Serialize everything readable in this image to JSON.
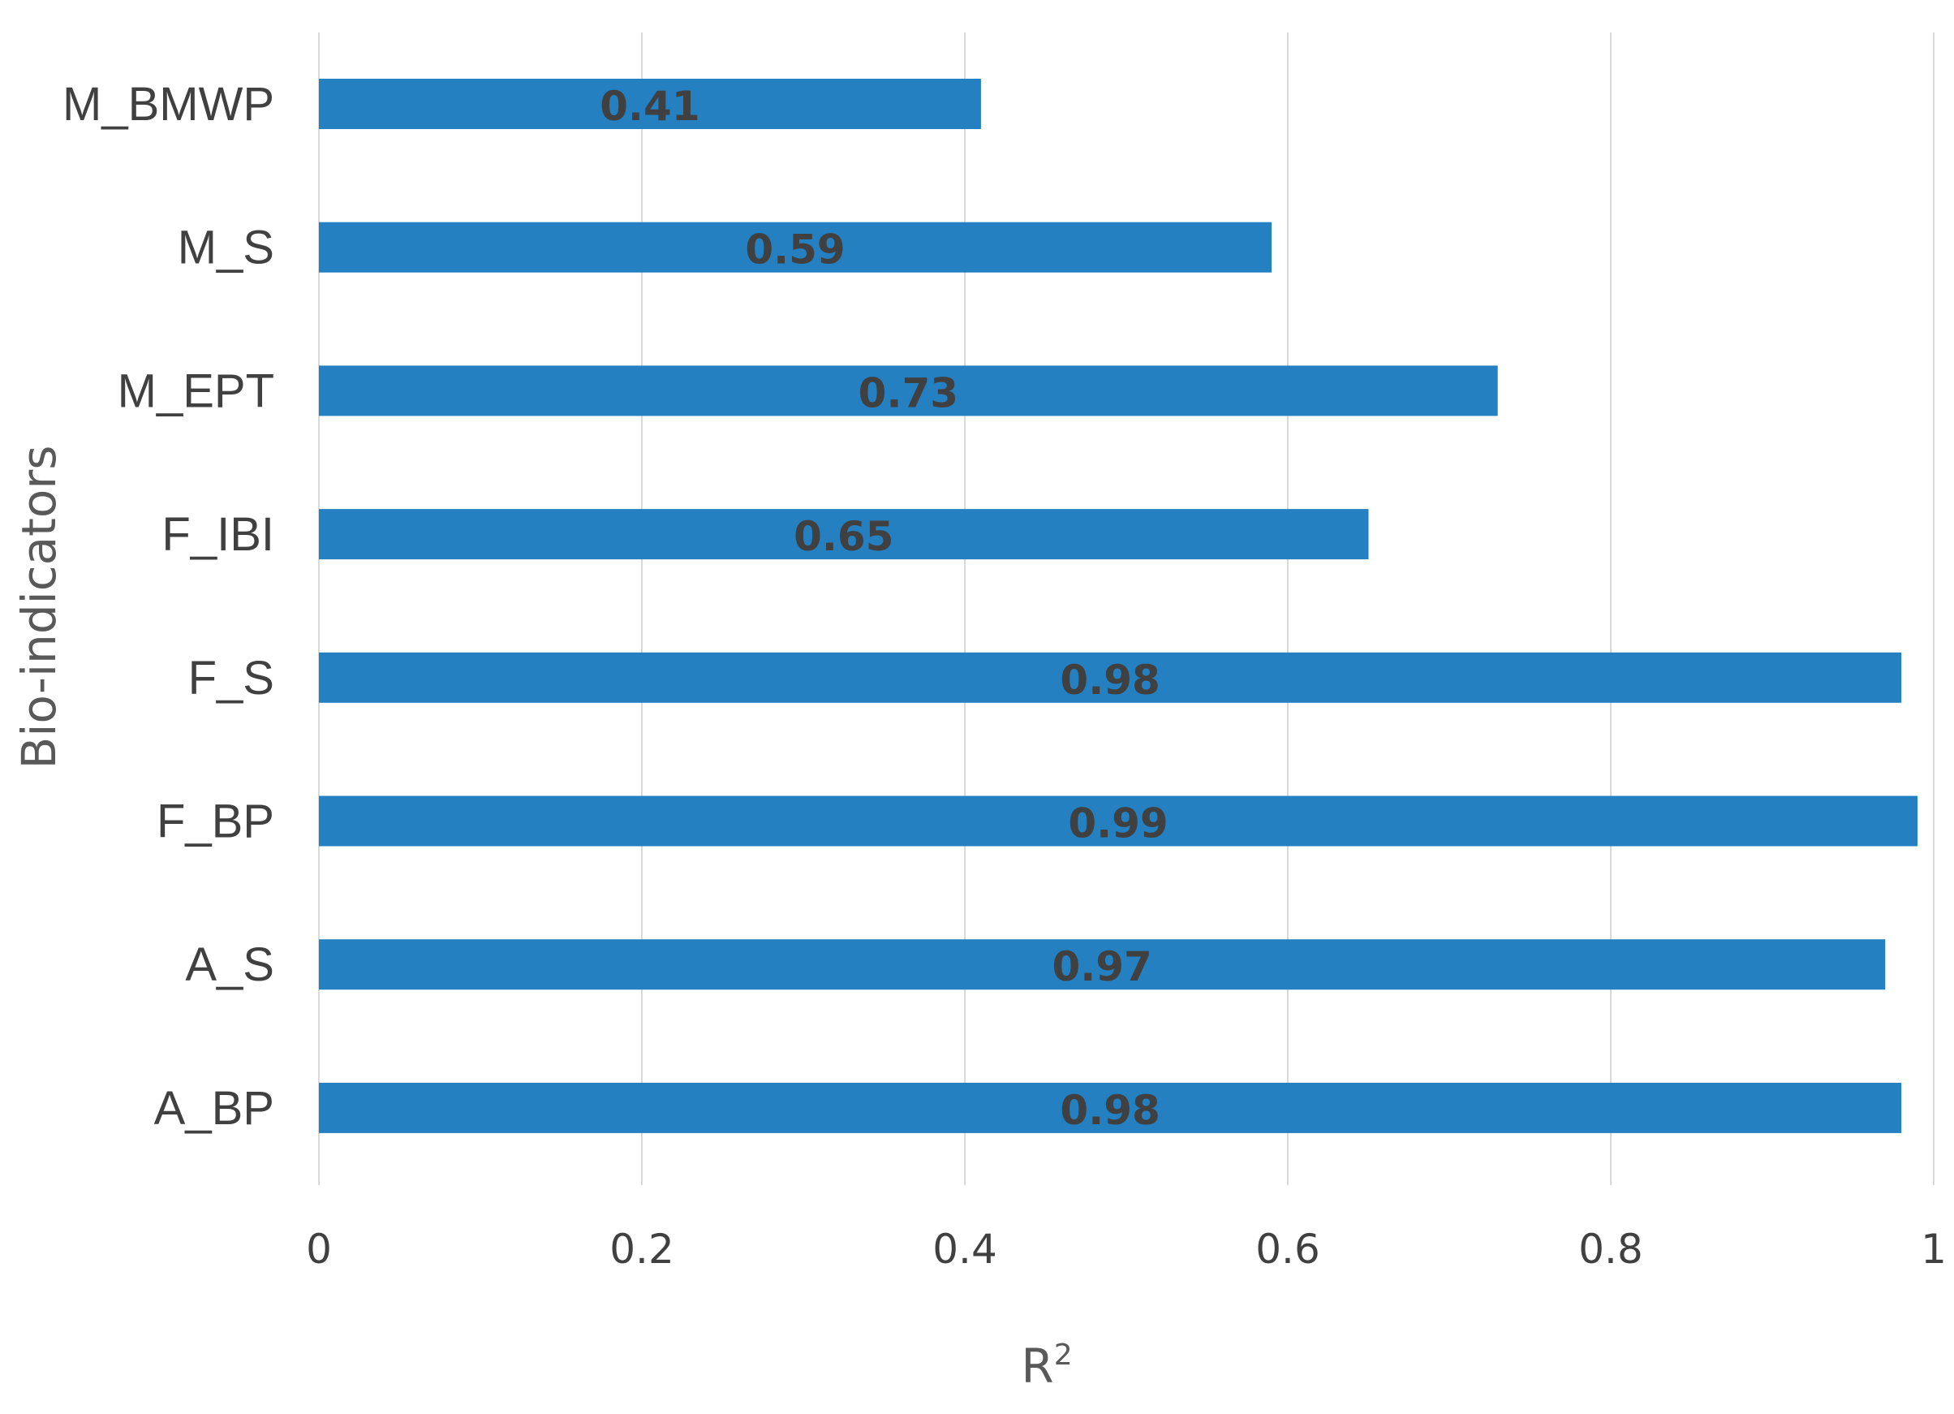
{
  "chart_data": {
    "type": "bar",
    "orientation": "horizontal",
    "categories": [
      "M_BMWP",
      "M_S",
      "M_EPT",
      "F_IBI",
      "F_S",
      "F_BP",
      "A_S",
      "A_BP"
    ],
    "values": [
      0.41,
      0.59,
      0.73,
      0.65,
      0.98,
      0.99,
      0.97,
      0.98
    ],
    "data_labels": [
      "0.41",
      "0.59",
      "0.73",
      "0.65",
      "0.98",
      "0.99",
      "0.97",
      "0.98"
    ],
    "title": "",
    "xlabel": "R",
    "xlabel_superscript": "2",
    "ylabel": "Bio-indicators",
    "xlim": [
      0,
      1
    ],
    "x_ticks": [
      0,
      0.2,
      0.4,
      0.6,
      0.8,
      1
    ],
    "x_tick_labels": [
      "0",
      "0.2",
      "0.4",
      "0.6",
      "0.8",
      "1"
    ],
    "grid": "vertical",
    "legend": "none",
    "bar_color": "#2480C0"
  }
}
